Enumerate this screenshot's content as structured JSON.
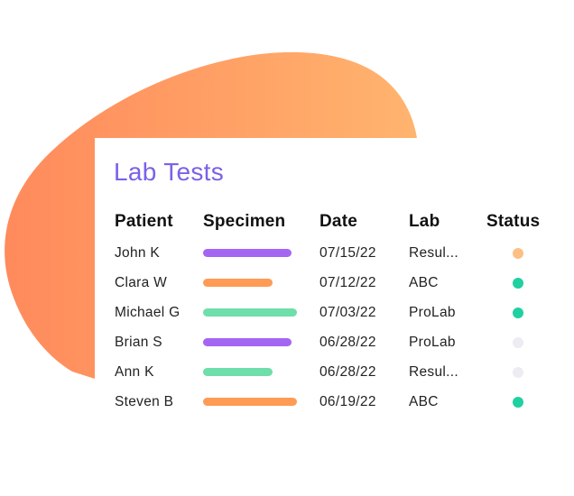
{
  "card": {
    "title": "Lab Tests"
  },
  "table": {
    "headers": {
      "patient": "Patient",
      "specimen": "Specimen",
      "date": "Date",
      "lab": "Lab",
      "status": "Status"
    },
    "rows": [
      {
        "patient": "John K",
        "specimen_color": "#A466F2",
        "date": "07/15/22",
        "lab": "Resul...",
        "status_color": "#FDBF84"
      },
      {
        "patient": "Clara W",
        "specimen_color": "#FF9B55",
        "date": "07/12/22",
        "lab": "ABC",
        "status_color": "#1FD1A0"
      },
      {
        "patient": "Michael G",
        "specimen_color": "#6EDEAA",
        "date": "07/03/22",
        "lab": "ProLab",
        "status_color": "#1FD1A0"
      },
      {
        "patient": "Brian S",
        "specimen_color": "#A466F2",
        "date": "06/28/22",
        "lab": "ProLab",
        "status_color": "#ECECF2"
      },
      {
        "patient": "Ann K",
        "specimen_color": "#6EDEAA",
        "date": "06/28/22",
        "lab": "Resul...",
        "status_color": "#ECECF2"
      },
      {
        "patient": "Steven B",
        "specimen_color": "#FF9B55",
        "date": "06/19/22",
        "lab": "ABC",
        "status_color": "#1FD1A0"
      }
    ]
  },
  "colors": {
    "title": "#7B61E8",
    "blob_start": "#FF8A5C",
    "blob_end": "#FFB46E"
  }
}
